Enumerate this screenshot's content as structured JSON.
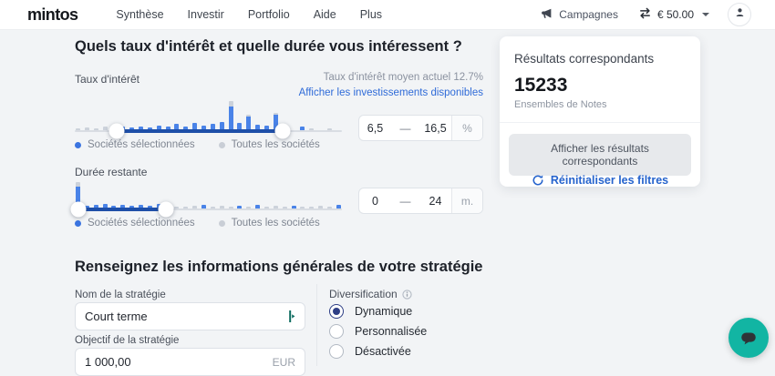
{
  "nav": {
    "logo": "mintos",
    "items": [
      "Synthèse",
      "Investir",
      "Portfolio",
      "Aide",
      "Plus"
    ],
    "campaigns_label": "Campagnes",
    "balance": "€ 50.00"
  },
  "filters": {
    "heading": "Quels taux d'intérêt et quelle durée vous intéressent ?",
    "interest": {
      "label": "Taux d'intérêt",
      "avg_note": "Taux d'intérêt moyen actuel 12.7%",
      "show_link": "Afficher les investissements disponibles",
      "range": {
        "from": "6,5",
        "dash": "—",
        "to": "16,5",
        "unit": "%"
      },
      "histogram": {
        "handle1_pct": 15.7,
        "handle2_pct": 77.8,
        "bars": [
          {
            "b": 0,
            "g": 2
          },
          {
            "b": 0,
            "g": 3
          },
          {
            "b": 0,
            "g": 2
          },
          {
            "b": 0,
            "g": 4
          },
          {
            "b": 0,
            "g": 5
          },
          {
            "b": 4,
            "g": 0
          },
          {
            "b": 3,
            "g": 0
          },
          {
            "b": 4,
            "g": 0
          },
          {
            "b": 3,
            "g": 0
          },
          {
            "b": 5,
            "g": 0
          },
          {
            "b": 4,
            "g": 0
          },
          {
            "b": 7,
            "g": 0
          },
          {
            "b": 4,
            "g": 0
          },
          {
            "b": 8,
            "g": 0
          },
          {
            "b": 5,
            "g": 0
          },
          {
            "b": 7,
            "g": 0
          },
          {
            "b": 9,
            "g": 0
          },
          {
            "b": 26,
            "g": 6
          },
          {
            "b": 8,
            "g": 0
          },
          {
            "b": 15,
            "g": 2
          },
          {
            "b": 6,
            "g": 0
          },
          {
            "b": 5,
            "g": 0
          },
          {
            "b": 17,
            "g": 2
          },
          {
            "b": 5,
            "g": 0
          },
          {
            "b": 0,
            "g": 0
          },
          {
            "b": 4,
            "g": 0
          },
          {
            "b": 0,
            "g": 2
          },
          {
            "b": 0,
            "g": 0
          },
          {
            "b": 0,
            "g": 2
          },
          {
            "b": 0,
            "g": 0
          }
        ]
      }
    },
    "duration": {
      "label": "Durée restante",
      "range": {
        "from": "0",
        "dash": "—",
        "to": "24",
        "unit": "m."
      },
      "histogram": {
        "handle1_pct": 1.2,
        "handle2_pct": 34,
        "bars": [
          {
            "b": 24,
            "g": 5
          },
          {
            "b": 3,
            "g": 0
          },
          {
            "b": 4,
            "g": 0
          },
          {
            "b": 5,
            "g": 0
          },
          {
            "b": 3,
            "g": 0
          },
          {
            "b": 4,
            "g": 0
          },
          {
            "b": 3,
            "g": 0
          },
          {
            "b": 4,
            "g": 0
          },
          {
            "b": 3,
            "g": 0
          },
          {
            "b": 5,
            "g": 0
          },
          {
            "b": 6,
            "g": 0
          },
          {
            "b": 0,
            "g": 2
          },
          {
            "b": 0,
            "g": 2
          },
          {
            "b": 0,
            "g": 3
          },
          {
            "b": 4,
            "g": 0
          },
          {
            "b": 0,
            "g": 2
          },
          {
            "b": 0,
            "g": 3
          },
          {
            "b": 0,
            "g": 2
          },
          {
            "b": 3,
            "g": 0
          },
          {
            "b": 0,
            "g": 2
          },
          {
            "b": 4,
            "g": 0
          },
          {
            "b": 0,
            "g": 2
          },
          {
            "b": 0,
            "g": 3
          },
          {
            "b": 0,
            "g": 2
          },
          {
            "b": 3,
            "g": 0
          },
          {
            "b": 0,
            "g": 2
          },
          {
            "b": 0,
            "g": 2
          },
          {
            "b": 0,
            "g": 3
          },
          {
            "b": 0,
            "g": 2
          },
          {
            "b": 4,
            "g": 0
          }
        ]
      }
    },
    "legend": {
      "selected": "Sociétés sélectionnées",
      "all": "Toutes les sociétés"
    }
  },
  "results": {
    "title": "Résultats correspondants",
    "count": "15233",
    "subtitle": "Ensembles de Notes",
    "button": "Afficher les résultats correspondants",
    "reset_link": "Réinitialiser les filtres"
  },
  "strategy": {
    "heading": "Renseignez les informations générales de votre stratégie",
    "name": {
      "label": "Nom de la stratégie",
      "value": "Court terme"
    },
    "goal": {
      "label": "Objectif de la stratégie",
      "value": "1 000,00",
      "currency": "EUR"
    },
    "diversification": {
      "label": "Diversification",
      "options": [
        {
          "label": "Dynamique",
          "selected": true
        },
        {
          "label": "Personnalisée",
          "selected": false
        },
        {
          "label": "Désactivée",
          "selected": false
        }
      ]
    }
  },
  "icons": {
    "megaphone": "megaphone-icon",
    "swap": "currency-exchange-icon",
    "caret": "chevron-down-icon",
    "user": "user-icon",
    "refresh": "refresh-icon",
    "info": "info-icon",
    "text_cursor": "text-cursor-icon",
    "chat": "chat-bubble-icon"
  },
  "colors": {
    "accent_link": "#2f6bd8",
    "bar_blue": "#4a83e8",
    "bar_gray": "#ccd2db",
    "track_selected": "#1e4fa8",
    "radio_selected": "#2d3e85",
    "chat_teal": "#12b5a3"
  }
}
